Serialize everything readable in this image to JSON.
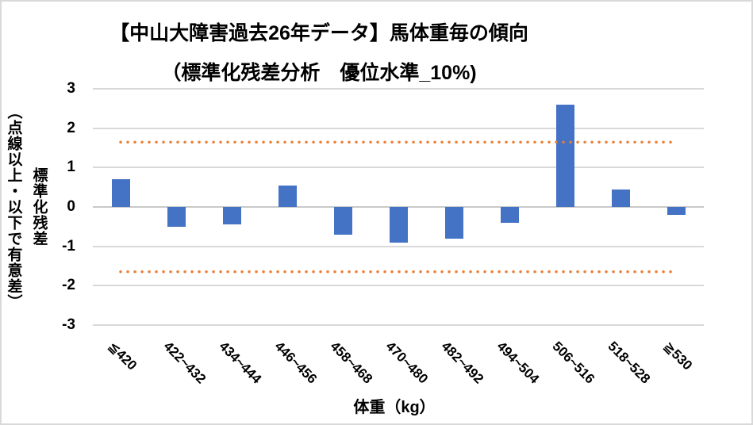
{
  "chart": {
    "title": "【中山大障害過去26年データ】馬体重毎の傾向",
    "subtitle": "（標準化残差分析　優位水準_10%)",
    "x_axis_title": "体重（kg）",
    "y_axis_title": "標準化残差",
    "y_axis_note": "（点線以上・以下で有意差）"
  },
  "chart_data": {
    "type": "bar",
    "title": "【中山大障害過去26年データ】馬体重毎の傾向",
    "subtitle": "（標準化残差分析　優位水準_10%)",
    "categories": [
      "≦420",
      "422~432",
      "434~444",
      "446~456",
      "458~468",
      "470~480",
      "482~492",
      "494~504",
      "506~516",
      "518~528",
      "≧530"
    ],
    "values": [
      0.7,
      -0.5,
      -0.45,
      0.55,
      -0.7,
      -0.9,
      -0.8,
      -0.4,
      2.6,
      0.45,
      -0.2
    ],
    "xlabel": "体重（kg）",
    "ylabel": "標準化残差（点線以上・以下で有意差）",
    "ylim": [
      -3,
      3
    ],
    "yticks": [
      3,
      2,
      1,
      0,
      -1,
      -2,
      -3
    ],
    "ytick_labels": [
      "3",
      "2",
      "1",
      "0",
      "-1",
      "-2",
      "-3"
    ],
    "thresholds": {
      "upper": 1.645,
      "lower": -1.645,
      "style": "dotted"
    },
    "grid": true,
    "legend": false,
    "colors": {
      "bar": "#4472C4",
      "threshold": "#ED7D31",
      "gridline": "#D9D9D9",
      "text": "#000000"
    }
  }
}
